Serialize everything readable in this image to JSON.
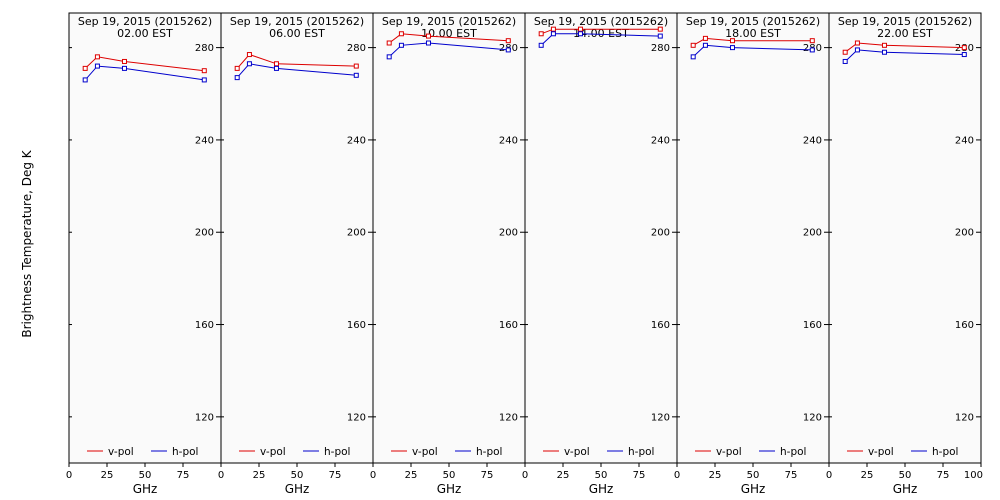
{
  "chart_data": {
    "type": "line",
    "ylabel": "Brightness Temperature, Deg K",
    "xlabel": "GHz",
    "xlim": [
      0,
      100
    ],
    "ylim": [
      100,
      295
    ],
    "x_ticks": [
      0,
      25,
      50,
      75,
      100
    ],
    "x_tick_labels": [
      "0",
      "25",
      "50",
      "75",
      "100"
    ],
    "y_ticks": [
      120,
      160,
      200,
      240,
      280
    ],
    "x": [
      10.65,
      18.7,
      36.5,
      89.0
    ],
    "legend": [
      "v-pol",
      "h-pol"
    ],
    "colors": {
      "v-pol": "#dd0000",
      "h-pol": "#0000cc"
    },
    "panels": [
      {
        "title1": "Sep 19, 2015 (2015262)",
        "title2": "02.00 EST",
        "series": [
          {
            "name": "v-pol",
            "values": [
              271,
              276,
              274,
              270
            ]
          },
          {
            "name": "h-pol",
            "values": [
              266,
              272,
              271,
              266
            ]
          }
        ]
      },
      {
        "title1": "Sep 19, 2015 (2015262)",
        "title2": "06.00 EST",
        "series": [
          {
            "name": "v-pol",
            "values": [
              271,
              277,
              273,
              272
            ]
          },
          {
            "name": "h-pol",
            "values": [
              267,
              273,
              271,
              268
            ]
          }
        ]
      },
      {
        "title1": "Sep 19, 2015 (2015262)",
        "title2": "10.00 EST",
        "series": [
          {
            "name": "v-pol",
            "values": [
              282,
              286,
              285,
              283
            ]
          },
          {
            "name": "h-pol",
            "values": [
              276,
              281,
              282,
              279
            ]
          }
        ]
      },
      {
        "title1": "Sep 19, 2015 (2015262)",
        "title2": "14.00 EST",
        "series": [
          {
            "name": "v-pol",
            "values": [
              286,
              288,
              288,
              288
            ]
          },
          {
            "name": "h-pol",
            "values": [
              281,
              286,
              286,
              285
            ]
          }
        ]
      },
      {
        "title1": "Sep 19, 2015 (2015262)",
        "title2": "18.00 EST",
        "series": [
          {
            "name": "v-pol",
            "values": [
              281,
              284,
              283,
              283
            ]
          },
          {
            "name": "h-pol",
            "values": [
              276,
              281,
              280,
              279
            ]
          }
        ]
      },
      {
        "title1": "Sep 19, 2015 (2015262)",
        "title2": "22.00 EST",
        "series": [
          {
            "name": "v-pol",
            "values": [
              278,
              282,
              281,
              280
            ]
          },
          {
            "name": "h-pol",
            "values": [
              274,
              279,
              278,
              277
            ]
          }
        ]
      }
    ]
  }
}
